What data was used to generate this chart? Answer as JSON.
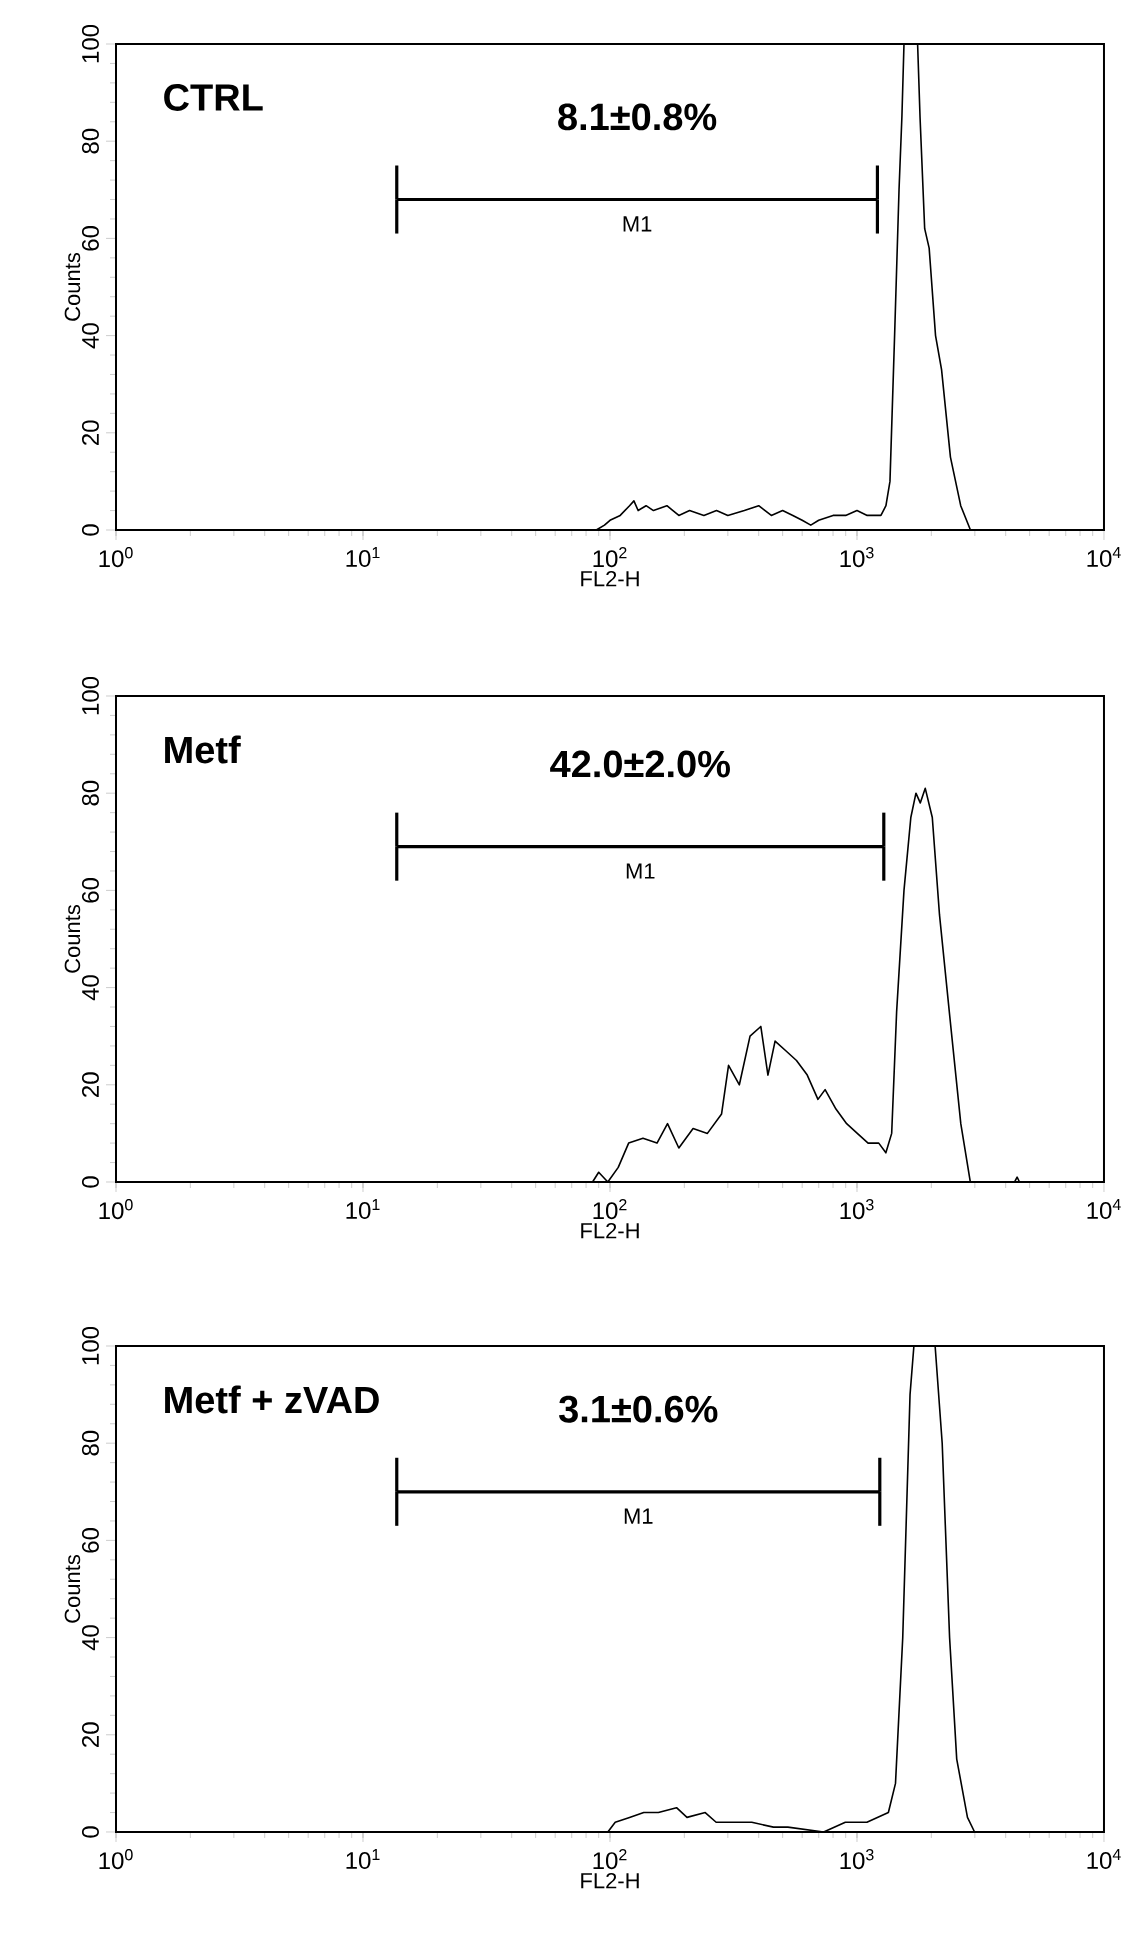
{
  "chart_data": [
    {
      "type": "line",
      "xlabel": "FL2-H",
      "ylabel": "Counts",
      "annotations": [
        "CTRL",
        "8.1±0.8%"
      ],
      "log": "x",
      "xlim": [
        1,
        10000
      ],
      "ylim": [
        0,
        100
      ],
      "xticks": [
        {
          "value": 1,
          "label": "10$^{0}$"
        },
        {
          "value": 10,
          "label": "10$^{1}$"
        },
        {
          "value": 100,
          "label": "10$^{2}$"
        },
        {
          "value": 1000,
          "label": "10$^{3}$"
        },
        {
          "value": 10000,
          "label": "10$^{4}$"
        }
      ],
      "yticks": [
        0,
        20,
        40,
        60,
        80,
        100
      ],
      "series": [
        {
          "color": "#000000",
          "x": [
            1,
            80,
            88,
            95,
            100,
            110,
            120,
            125,
            130,
            140,
            150,
            170,
            190,
            210,
            240,
            270,
            300,
            350,
            400,
            450,
            500,
            550,
            600,
            650,
            700,
            800,
            900,
            1000,
            1100,
            1250,
            1310,
            1360,
            1420,
            1480,
            1520,
            1550,
            1760,
            1800,
            1880,
            1960,
            2080,
            2200,
            2390,
            2630,
            2880,
            10000
          ],
          "values": [
            0,
            0,
            0,
            1,
            2,
            3,
            5,
            6,
            4,
            5,
            4,
            5,
            3,
            4,
            3,
            4,
            3,
            4,
            5,
            3,
            4,
            3,
            2,
            1,
            2,
            3,
            3,
            4,
            3,
            3,
            5,
            10,
            40,
            70,
            85,
            100,
            100,
            85,
            62,
            58,
            40,
            33,
            15,
            5,
            0,
            0
          ]
        },
        {
          "name": "M1",
          "color": "#000000",
          "x": [
            13.7,
            1210
          ],
          "values": [
            68,
            68
          ],
          "errors": [
            7,
            7
          ]
        }
      ]
    },
    {
      "type": "line",
      "xlabel": "FL2-H",
      "ylabel": "Counts",
      "annotations": [
        "Metf",
        "42.0±2.0%"
      ],
      "log": "x",
      "xlim": [
        1,
        10000
      ],
      "ylim": [
        0,
        100
      ],
      "xticks": [
        {
          "value": 1,
          "label": "10$^{0}$"
        },
        {
          "value": 10,
          "label": "10$^{1}$"
        },
        {
          "value": 100,
          "label": "10$^{2}$"
        },
        {
          "value": 1000,
          "label": "10$^{3}$"
        },
        {
          "value": 10000,
          "label": "10$^{4}$"
        }
      ],
      "yticks": [
        0,
        20,
        40,
        60,
        80,
        100
      ],
      "series": [
        {
          "color": "#000000",
          "x": [
            1,
            85,
            90,
            98,
            108,
            119,
            136,
            155,
            171,
            190,
            217,
            248,
            283,
            302,
            334,
            369,
            408,
            436,
            466,
            515,
            569,
            629,
            695,
            743,
            822,
            908,
            1003,
            1109,
            1225,
            1309,
            1382,
            1447,
            1550,
            1652,
            1733,
            1804,
            1890,
            2018,
            2158,
            2387,
            2632,
            2876,
            4347,
            4450,
            4550,
            10000
          ],
          "values": [
            0,
            0,
            2,
            0,
            3,
            8,
            9,
            8,
            12,
            7,
            11,
            10,
            14,
            24,
            20,
            30,
            32,
            22,
            29,
            27,
            25,
            22,
            17,
            19,
            15,
            12,
            10,
            8,
            8,
            6,
            10,
            35,
            60,
            75,
            80,
            78,
            81,
            75,
            55,
            33,
            12,
            0,
            0,
            1,
            0,
            0
          ]
        },
        {
          "name": "M1",
          "color": "#000000",
          "x": [
            13.7,
            1284
          ],
          "values": [
            69,
            69
          ],
          "errors": [
            7,
            7
          ]
        }
      ]
    },
    {
      "type": "line",
      "xlabel": "FL2-H",
      "ylabel": "Counts",
      "annotations": [
        "Metf + zVAD",
        "3.1±0.6%"
      ],
      "log": "x",
      "xlim": [
        1,
        10000
      ],
      "ylim": [
        0,
        100
      ],
      "xticks": [
        {
          "value": 1,
          "label": "10$^{0}$"
        },
        {
          "value": 10,
          "label": "10$^{1}$"
        },
        {
          "value": 100,
          "label": "10$^{2}$"
        },
        {
          "value": 1000,
          "label": "10$^{3}$"
        },
        {
          "value": 10000,
          "label": "10$^{4}$"
        }
      ],
      "yticks": [
        0,
        20,
        40,
        60,
        80,
        100
      ],
      "series": [
        {
          "color": "#000000",
          "x": [
            1,
            98,
            105,
            120,
            137,
            157,
            186,
            205,
            243,
            269,
            375,
            459,
            525,
            733,
            897,
            1097,
            1340,
            1432,
            1532,
            1640,
            1700,
            2072,
            2213,
            2371,
            2534,
            2801,
            2993,
            10000
          ],
          "values": [
            0,
            0,
            2,
            3,
            4,
            4,
            5,
            3,
            4,
            2,
            2,
            1,
            1,
            0,
            2,
            2,
            4,
            10,
            40,
            90,
            100,
            100,
            80,
            40,
            15,
            3,
            0,
            0
          ]
        },
        {
          "name": "M1",
          "color": "#000000",
          "x": [
            13.7,
            1237
          ],
          "values": [
            70,
            70
          ],
          "errors": [
            7,
            7
          ]
        }
      ]
    }
  ]
}
